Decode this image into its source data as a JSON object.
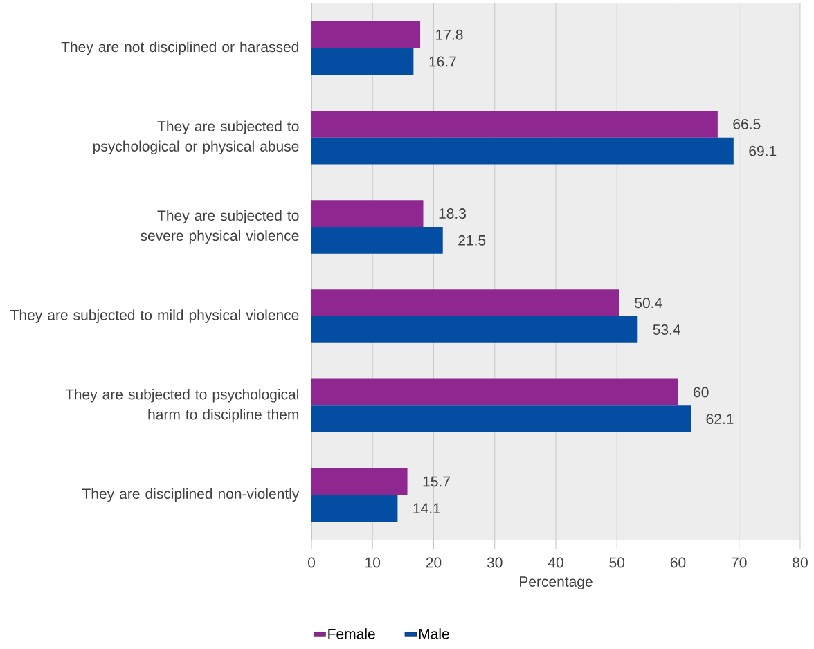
{
  "chart_data": {
    "type": "bar",
    "orientation": "horizontal",
    "xlabel": "Percentage",
    "categories": [
      "They are not disciplined or harassed",
      "They are subjected to psychological or physical abuse",
      "They are subjected to severe physical violence",
      "They are subjected to mild physical violence",
      "They are subjected to psychological harm to discipline them",
      "They are disciplined non-violently"
    ],
    "series": [
      {
        "name": "Female",
        "color": "#8e278f",
        "values": [
          17.8,
          66.5,
          18.3,
          50.4,
          60,
          15.7
        ]
      },
      {
        "name": "Male",
        "color": "#034ea2",
        "values": [
          16.7,
          69.1,
          21.5,
          53.4,
          62.1,
          14.1
        ]
      }
    ],
    "xlim": [
      0,
      80
    ],
    "xticks": [
      0,
      10,
      20,
      30,
      40,
      50,
      60,
      70,
      80
    ],
    "grid": "x",
    "legend": "bottom",
    "data_labels": true
  }
}
